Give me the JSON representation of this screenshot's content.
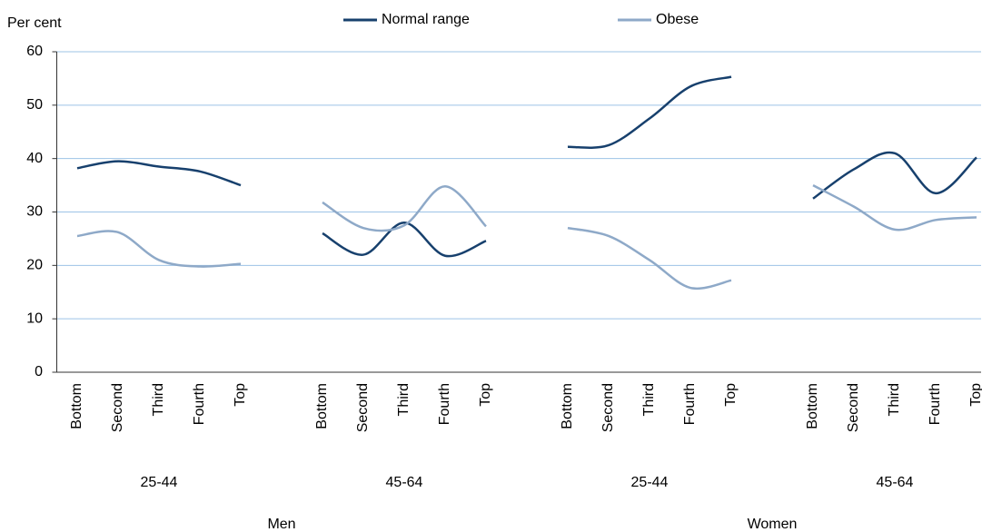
{
  "chart_data": {
    "type": "line",
    "y_label": "Per cent",
    "categories": [
      "Bottom",
      "Second",
      "Third",
      "Fourth",
      "Top",
      null,
      "Bottom",
      "Second",
      "Third",
      "Fourth",
      "Top",
      null,
      "Bottom",
      "Second",
      "Third",
      "Fourth",
      "Top",
      null,
      "Bottom",
      "Second",
      "Third",
      "Fourth",
      "Top"
    ],
    "groups": [
      "25-44",
      "45-64",
      "25-44",
      "45-64"
    ],
    "panels": [
      "Men",
      "Women"
    ],
    "series": [
      {
        "name": "Normal range",
        "color": "#17406d",
        "values": [
          38.2,
          39.5,
          38.5,
          37.6,
          35.0,
          null,
          26,
          22,
          28,
          21.8,
          24.6,
          null,
          42.2,
          42.5,
          47.5,
          53.5,
          55.3,
          null,
          32.5,
          38,
          41,
          33.5,
          40.2
        ]
      },
      {
        "name": "Obese",
        "color": "#8ea9c8",
        "values": [
          25.5,
          26.2,
          21,
          19.8,
          20.3,
          null,
          31.8,
          27,
          27.5,
          34.8,
          27.3,
          null,
          27,
          25.5,
          21,
          15.8,
          17.2,
          null,
          35,
          31,
          26.7,
          28.5,
          29
        ]
      }
    ],
    "ylim": [
      0,
      60
    ],
    "yticks": [
      0,
      10,
      20,
      30,
      40,
      50,
      60
    ],
    "grid": true
  }
}
